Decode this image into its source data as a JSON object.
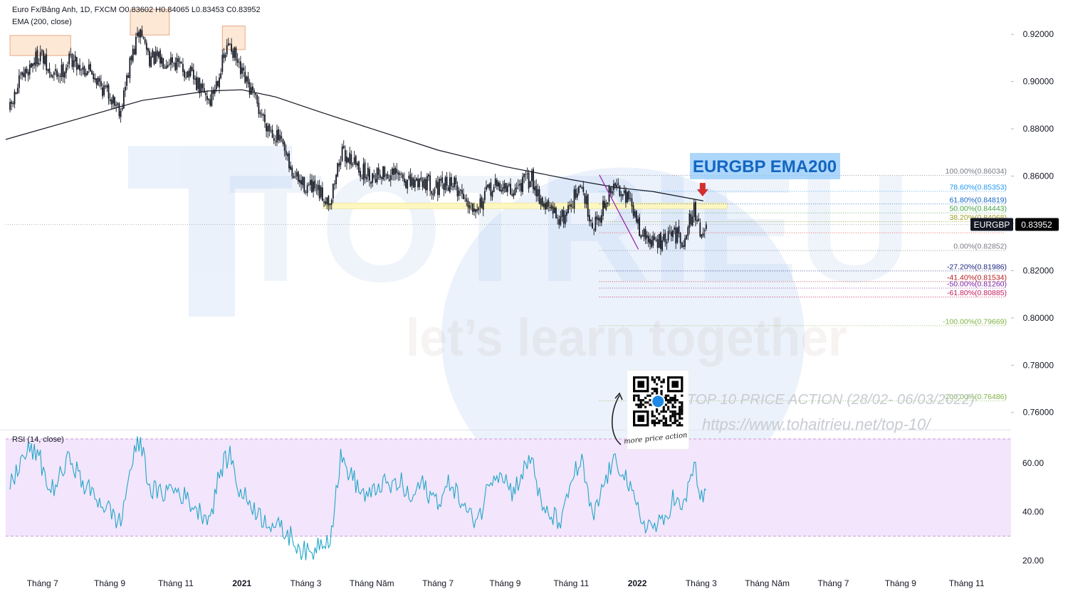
{
  "header": {
    "symbol_line": "Euro Fx/Bảng Anh, 1D, FXCM  O0.83602  H0.84065  L0.83453  C0.83952",
    "indicator_line": "EMA (200, close)"
  },
  "rsi_panel": {
    "label": "RSI (14, close)"
  },
  "watermark": {
    "tagline": "let’s learn together"
  },
  "annotation_title": "EURGBP EMA200",
  "promo": {
    "line1": "TOP 10 PRICE ACTION (28/02- 06/03/2022)",
    "line2": "https://www.tohaitrieu.net/top-10/",
    "qr_caption": "more price action"
  },
  "colors": {
    "candle": "#131722",
    "ema": "#131722",
    "rsi_line": "#22a7c8",
    "rsi_band": "#f3e5fb",
    "rsi_band_border": "#c89ad8",
    "support_zone": "#fdf6bf",
    "highlight_box": "#fde8d6",
    "highlight_border": "#e9a985",
    "trendline": "#9c27b0",
    "annotation_bg": "#90caf9",
    "annotation_text": "#1565c0",
    "arrow": "#d32f2f",
    "watermark": "#2c6fd6",
    "price_label_bg": "#000000"
  },
  "chart_data": [
    {
      "type": "candlestick",
      "title": "",
      "symbol": "EURGBP",
      "last_price": "0.83952",
      "ohlc_last": {
        "open": 0.83602,
        "high": 0.84065,
        "low": 0.83453,
        "close": 0.83952
      },
      "y_ticks": [
        "0.92000",
        "0.90000",
        "0.88000",
        "0.86000",
        "0.84000",
        "0.82000",
        "0.80000",
        "0.78000",
        "0.76000"
      ],
      "y_tick_values": [
        0.92,
        0.9,
        0.88,
        0.86,
        0.84,
        0.82,
        0.8,
        0.78,
        0.76
      ],
      "x_ticks": [
        "Tháng 7",
        "Tháng 9",
        "Tháng 11",
        "2021",
        "Tháng 3",
        "Tháng Năm",
        "Tháng 7",
        "Tháng 9",
        "Tháng 11",
        "2022",
        "Tháng 3",
        "Tháng Năm",
        "Tháng 7",
        "Tháng 9",
        "Tháng 11"
      ],
      "x_tick_dates": [
        "2020-07-01",
        "2020-09-01",
        "2020-11-01",
        "2021-01-01",
        "2021-03-01",
        "2021-05-01",
        "2021-07-01",
        "2021-09-01",
        "2021-11-01",
        "2022-01-01",
        "2022-03-01",
        "2022-05-01",
        "2022-07-01",
        "2022-09-01",
        "2022-11-01"
      ],
      "x_range": [
        "2020-05-28",
        "2022-12-12"
      ],
      "ylim": [
        0.7527,
        0.9345
      ],
      "close_path": [
        [
          "2020-06-01",
          0.888
        ],
        [
          "2020-06-10",
          0.9
        ],
        [
          "2020-06-20",
          0.907
        ],
        [
          "2020-06-29",
          0.912
        ],
        [
          "2020-07-08",
          0.902
        ],
        [
          "2020-07-18",
          0.904
        ],
        [
          "2020-07-27",
          0.91
        ],
        [
          "2020-08-06",
          0.906
        ],
        [
          "2020-08-15",
          0.905
        ],
        [
          "2020-08-24",
          0.898
        ],
        [
          "2020-09-02",
          0.894
        ],
        [
          "2020-09-11",
          0.888
        ],
        [
          "2020-09-20",
          0.908
        ],
        [
          "2020-09-29",
          0.922
        ],
        [
          "2020-10-08",
          0.91
        ],
        [
          "2020-10-18",
          0.909
        ],
        [
          "2020-10-27",
          0.91
        ],
        [
          "2020-11-05",
          0.906
        ],
        [
          "2020-11-14",
          0.903
        ],
        [
          "2020-11-23",
          0.897
        ],
        [
          "2020-12-03",
          0.892
        ],
        [
          "2020-12-12",
          0.905
        ],
        [
          "2020-12-21",
          0.917
        ],
        [
          "2020-12-30",
          0.904
        ],
        [
          "2021-01-09",
          0.896
        ],
        [
          "2021-01-18",
          0.887
        ],
        [
          "2021-01-27",
          0.88
        ],
        [
          "2021-02-05",
          0.875
        ],
        [
          "2021-02-15",
          0.862
        ],
        [
          "2021-02-24",
          0.857
        ],
        [
          "2021-03-05",
          0.855
        ],
        [
          "2021-03-14",
          0.852
        ],
        [
          "2021-03-24",
          0.85
        ],
        [
          "2021-04-02",
          0.869
        ],
        [
          "2021-04-11",
          0.868
        ],
        [
          "2021-04-21",
          0.862
        ],
        [
          "2021-04-30",
          0.86
        ],
        [
          "2021-05-09",
          0.862
        ],
        [
          "2021-05-18",
          0.86
        ],
        [
          "2021-05-28",
          0.86
        ],
        [
          "2021-06-06",
          0.856
        ],
        [
          "2021-06-15",
          0.859
        ],
        [
          "2021-06-25",
          0.856
        ],
        [
          "2021-07-04",
          0.855
        ],
        [
          "2021-07-13",
          0.858
        ],
        [
          "2021-07-22",
          0.853
        ],
        [
          "2021-08-01",
          0.848
        ],
        [
          "2021-08-10",
          0.849
        ],
        [
          "2021-08-19",
          0.855
        ],
        [
          "2021-08-29",
          0.856
        ],
        [
          "2021-09-07",
          0.853
        ],
        [
          "2021-09-16",
          0.857
        ],
        [
          "2021-09-26",
          0.859
        ],
        [
          "2021-10-05",
          0.849
        ],
        [
          "2021-10-14",
          0.845
        ],
        [
          "2021-10-24",
          0.842
        ],
        [
          "2021-11-02",
          0.85
        ],
        [
          "2021-11-11",
          0.855
        ],
        [
          "2021-11-21",
          0.839
        ],
        [
          "2021-11-30",
          0.846
        ],
        [
          "2021-12-09",
          0.855
        ],
        [
          "2021-12-19",
          0.855
        ],
        [
          "2021-12-28",
          0.845
        ],
        [
          "2022-01-06",
          0.835
        ],
        [
          "2022-01-15",
          0.832
        ],
        [
          "2022-01-25",
          0.832
        ],
        [
          "2022-02-03",
          0.836
        ],
        [
          "2022-02-12",
          0.833
        ],
        [
          "2022-02-22",
          0.846
        ],
        [
          "2022-03-03",
          0.834
        ],
        [
          "2022-03-07",
          0.8395
        ]
      ],
      "ema_path": [
        [
          "2020-05-28",
          0.8755
        ],
        [
          "2020-08-01",
          0.884
        ],
        [
          "2020-10-01",
          0.892
        ],
        [
          "2020-12-01",
          0.896
        ],
        [
          "2021-01-01",
          0.8965
        ],
        [
          "2021-02-01",
          0.8935
        ],
        [
          "2021-03-15",
          0.887
        ],
        [
          "2021-05-01",
          0.88
        ],
        [
          "2021-07-01",
          0.871
        ],
        [
          "2021-09-01",
          0.864
        ],
        [
          "2021-11-01",
          0.8585
        ],
        [
          "2021-12-15",
          0.855
        ],
        [
          "2022-01-15",
          0.8535
        ],
        [
          "2022-03-03",
          0.8495
        ]
      ],
      "highlight_boxes": [
        {
          "x": [
            "2020-06-01",
            "2020-07-27"
          ],
          "y": [
            0.911,
            0.9195
          ]
        },
        {
          "x": [
            "2020-09-20",
            "2020-10-26"
          ],
          "y": [
            0.9197,
            0.9305
          ]
        },
        {
          "x": [
            "2020-12-14",
            "2021-01-04"
          ],
          "y": [
            0.9135,
            0.9235
          ]
        }
      ],
      "support_zone": {
        "x": [
          "2021-03-17",
          "2022-03-25"
        ],
        "y": [
          0.8462,
          0.8486
        ]
      },
      "trendline": [
        [
          "2021-11-27",
          0.8605
        ],
        [
          "2022-01-02",
          0.829
        ]
      ],
      "arrow_at": [
        "2022-03-01",
        0.8535
      ],
      "fibonacci": {
        "x_range": [
          "2021-11-27",
          "2022-03-07"
        ],
        "levels": [
          {
            "label": "100.00%(0.86034)",
            "value": 0.86034,
            "color": "#787b86"
          },
          {
            "label": "78.60%(0.85353)",
            "value": 0.85353,
            "color": "#2196f3"
          },
          {
            "label": "61.80%(0.84819)",
            "value": 0.84819,
            "color": "#1565c0"
          },
          {
            "label": "50.00%(0.84443)",
            "value": 0.84443,
            "color": "#43a047"
          },
          {
            "label": "38.20%(0.84068)",
            "value": 0.84068,
            "color": "#9e9d24"
          },
          {
            "label": "23.60%",
            "value": 0.83603,
            "color": "#e53935"
          },
          {
            "label": "0.00%(0.82852)",
            "value": 0.82852,
            "color": "#787b86"
          },
          {
            "label": "-27.20%(0.81986)",
            "value": 0.81986,
            "color": "#1a237e"
          },
          {
            "label": "-41.40%(0.81534)",
            "value": 0.81534,
            "color": "#b71c1c"
          },
          {
            "label": "-50.00%(0.81260)",
            "value": 0.8126,
            "color": "#7b1fa2"
          },
          {
            "label": "-61.80%(0.80885)",
            "value": 0.80885,
            "color": "#c2185b"
          },
          {
            "label": "-100.00%(0.79669)",
            "value": 0.79669,
            "color": "#7cb342"
          },
          {
            "label": "-200.00%(0.76486)",
            "value": 0.76486,
            "color": "#7cb342"
          }
        ]
      }
    },
    {
      "type": "line",
      "title": "RSI (14, close)",
      "y_ticks": [
        "60.00",
        "40.00",
        "20.00"
      ],
      "y_tick_values": [
        60,
        40,
        20
      ],
      "ylim": [
        15,
        73.5
      ],
      "band": [
        30,
        70
      ],
      "rsi_path": [
        [
          "2020-06-01",
          50
        ],
        [
          "2020-06-10",
          60
        ],
        [
          "2020-06-20",
          66
        ],
        [
          "2020-06-29",
          61
        ],
        [
          "2020-07-08",
          48
        ],
        [
          "2020-07-18",
          55
        ],
        [
          "2020-07-27",
          63
        ],
        [
          "2020-08-06",
          52
        ],
        [
          "2020-08-15",
          48
        ],
        [
          "2020-08-24",
          44
        ],
        [
          "2020-09-02",
          40
        ],
        [
          "2020-09-11",
          35
        ],
        [
          "2020-09-20",
          58
        ],
        [
          "2020-09-29",
          70
        ],
        [
          "2020-10-08",
          50
        ],
        [
          "2020-10-18",
          47
        ],
        [
          "2020-10-27",
          50
        ],
        [
          "2020-11-05",
          48
        ],
        [
          "2020-11-14",
          44
        ],
        [
          "2020-11-23",
          40
        ],
        [
          "2020-12-03",
          38
        ],
        [
          "2020-12-12",
          57
        ],
        [
          "2020-12-21",
          64
        ],
        [
          "2020-12-30",
          48
        ],
        [
          "2021-01-09",
          44
        ],
        [
          "2021-01-18",
          38
        ],
        [
          "2021-01-27",
          36
        ],
        [
          "2021-02-05",
          33
        ],
        [
          "2021-02-15",
          30
        ],
        [
          "2021-02-24",
          25
        ],
        [
          "2021-03-05",
          22
        ],
        [
          "2021-03-14",
          28
        ],
        [
          "2021-03-24",
          30
        ],
        [
          "2021-04-02",
          62
        ],
        [
          "2021-04-11",
          56
        ],
        [
          "2021-04-21",
          48
        ],
        [
          "2021-04-30",
          46
        ],
        [
          "2021-05-09",
          52
        ],
        [
          "2021-05-18",
          50
        ],
        [
          "2021-05-28",
          52
        ],
        [
          "2021-06-06",
          44
        ],
        [
          "2021-06-15",
          52
        ],
        [
          "2021-06-25",
          46
        ],
        [
          "2021-07-04",
          45
        ],
        [
          "2021-07-13",
          53
        ],
        [
          "2021-07-22",
          44
        ],
        [
          "2021-08-01",
          37
        ],
        [
          "2021-08-10",
          40
        ],
        [
          "2021-08-19",
          55
        ],
        [
          "2021-08-29",
          57
        ],
        [
          "2021-09-07",
          48
        ],
        [
          "2021-09-16",
          55
        ],
        [
          "2021-09-26",
          63
        ],
        [
          "2021-10-05",
          40
        ],
        [
          "2021-10-14",
          38
        ],
        [
          "2021-10-24",
          36
        ],
        [
          "2021-11-02",
          55
        ],
        [
          "2021-11-11",
          60
        ],
        [
          "2021-11-21",
          36
        ],
        [
          "2021-11-30",
          50
        ],
        [
          "2021-12-09",
          60
        ],
        [
          "2021-12-19",
          58
        ],
        [
          "2021-12-28",
          45
        ],
        [
          "2022-01-06",
          36
        ],
        [
          "2022-01-15",
          34
        ],
        [
          "2022-01-25",
          35
        ],
        [
          "2022-02-03",
          46
        ],
        [
          "2022-02-12",
          40
        ],
        [
          "2022-02-22",
          60
        ],
        [
          "2022-03-03",
          42
        ],
        [
          "2022-03-07",
          54
        ]
      ]
    }
  ]
}
